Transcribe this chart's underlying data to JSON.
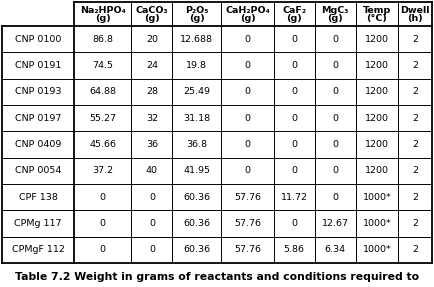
{
  "caption": "Table 7.2 Weight in grams of reactants and conditions required to",
  "col_headers": [
    [
      "Na₂HPO₄",
      "(g)"
    ],
    [
      "CaCO₃",
      "(g)"
    ],
    [
      "P₂O₅",
      "(g)"
    ],
    [
      "CaH₂PO₄",
      "(g)"
    ],
    [
      "CaF₂",
      "(g)"
    ],
    [
      "MgC₃",
      "(g)"
    ],
    [
      "Temp",
      "(°C)"
    ],
    [
      "Dwell",
      "(h)"
    ]
  ],
  "row_labels": [
    "CNP 0100",
    "CNP 0191",
    "CNP 0193",
    "CNP 0197",
    "CNP 0409",
    "CNP 0054",
    "CPF 138",
    "CPMg 117",
    "CPMgF 112"
  ],
  "table_data": [
    [
      "86.8",
      "20",
      "12.688",
      "0",
      "0",
      "0",
      "1200",
      "2"
    ],
    [
      "74.5",
      "24",
      "19.8",
      "0",
      "0",
      "0",
      "1200",
      "2"
    ],
    [
      "64.88",
      "28",
      "25.49",
      "0",
      "0",
      "0",
      "1200",
      "2"
    ],
    [
      "55.27",
      "32",
      "31.18",
      "0",
      "0",
      "0",
      "1200",
      "2"
    ],
    [
      "45.66",
      "36",
      "36.8",
      "0",
      "0",
      "0",
      "1200",
      "2"
    ],
    [
      "37.2",
      "40",
      "41.95",
      "0",
      "0",
      "0",
      "1200",
      "2"
    ],
    [
      "0",
      "0",
      "60.36",
      "57.76",
      "11.72",
      "0",
      "1000*",
      "2"
    ],
    [
      "0",
      "0",
      "60.36",
      "57.76",
      "0",
      "12.67",
      "1000*",
      "2"
    ],
    [
      "0",
      "0",
      "60.36",
      "57.76",
      "5.86",
      "6.34",
      "1000*",
      "2"
    ]
  ],
  "bg_color": "#ffffff",
  "border_color": "#000000",
  "caption_fontsize": 7.8,
  "cell_fontsize": 6.8,
  "header_fontsize": 6.8
}
